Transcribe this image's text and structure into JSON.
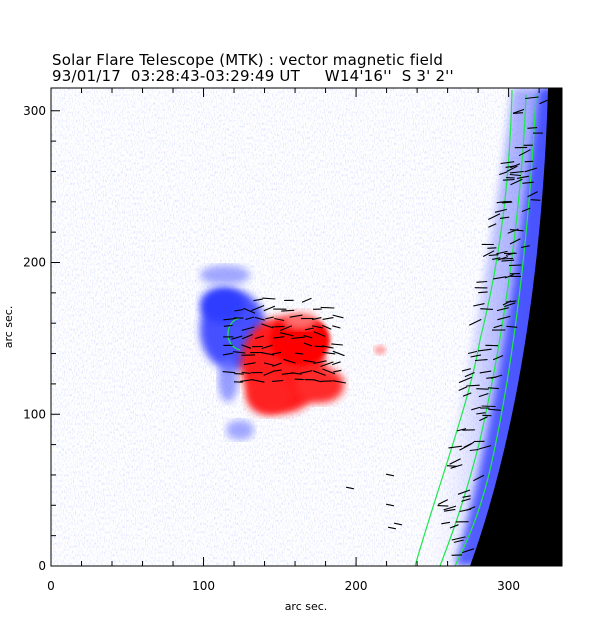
{
  "title": "Solar Flare Telescope (MTK) : vector magnetic field",
  "subtitle": "93/01/17  03:28:43-03:29:49 UT     W14'16''  S 3' 2''",
  "colors": {
    "positive_polarity": "#ff0000",
    "negative_polarity": "#3c46ff",
    "contour": "#1ee84a",
    "vector": "#000000",
    "off_disk": "#000000",
    "background": "#ffffff"
  },
  "chart_data": {
    "type": "heatmap",
    "xlabel": "arc sec.",
    "ylabel": "arc sec.",
    "xlim": [
      0,
      335
    ],
    "ylim": [
      0,
      315
    ],
    "x_ticks": [
      "0",
      "100",
      "200",
      "300"
    ],
    "y_ticks": [
      "0",
      "100",
      "200",
      "300"
    ],
    "x_tick_values": [
      0,
      100,
      200,
      300
    ],
    "y_tick_values": [
      0,
      100,
      200,
      300
    ],
    "grid": false
  }
}
